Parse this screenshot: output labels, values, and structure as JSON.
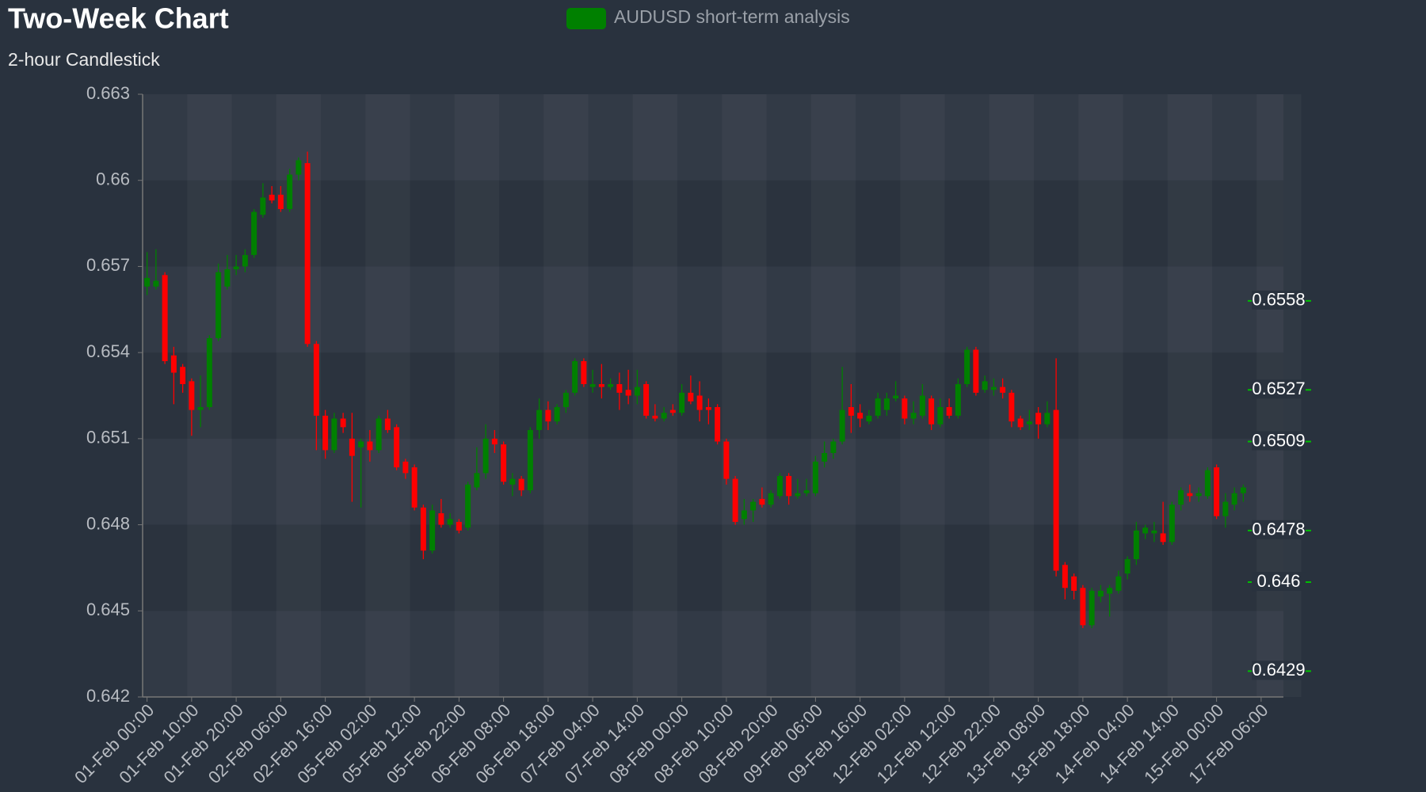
{
  "chart_data": {
    "type": "candlestick",
    "title": "Two-Week Chart",
    "subtitle": "2-hour Candlestick",
    "legend": {
      "name": "AUDUSD short-term analysis",
      "color": "#008000",
      "position": "top"
    },
    "up_color": "#008000",
    "down_color": "#ff0000",
    "ylim": [
      0.642,
      0.663
    ],
    "yticks": [
      0.642,
      0.645,
      0.648,
      0.651,
      0.654,
      0.657,
      0.66,
      0.663
    ],
    "levels": [
      0.6558,
      0.6527,
      0.6509,
      0.6478,
      0.646,
      0.6429
    ],
    "level_color": "#00c000",
    "categories": [
      "01-Feb 00:00",
      null,
      null,
      null,
      null,
      "01-Feb 10:00",
      null,
      null,
      null,
      null,
      "01-Feb 20:00",
      null,
      null,
      null,
      null,
      "02-Feb 06:00",
      null,
      null,
      null,
      null,
      "02-Feb 16:00",
      null,
      null,
      null,
      null,
      "05-Feb 02:00",
      null,
      null,
      null,
      null,
      "05-Feb 12:00",
      null,
      null,
      null,
      null,
      "05-Feb 22:00",
      null,
      null,
      null,
      null,
      "06-Feb 08:00",
      null,
      null,
      null,
      null,
      "06-Feb 18:00",
      null,
      null,
      null,
      null,
      "07-Feb 04:00",
      null,
      null,
      null,
      null,
      "07-Feb 14:00",
      null,
      null,
      null,
      null,
      "08-Feb 00:00",
      null,
      null,
      null,
      null,
      "08-Feb 10:00",
      null,
      null,
      null,
      null,
      "08-Feb 20:00",
      null,
      null,
      null,
      null,
      "09-Feb 06:00",
      null,
      null,
      null,
      null,
      "09-Feb 16:00",
      null,
      null,
      null,
      null,
      "12-Feb 02:00",
      null,
      null,
      null,
      null,
      "12-Feb 12:00",
      null,
      null,
      null,
      null,
      "12-Feb 22:00",
      null,
      null,
      null,
      null,
      "13-Feb 08:00",
      null,
      null,
      null,
      null,
      "13-Feb 18:00",
      null,
      null,
      null,
      null,
      "14-Feb 04:00",
      null,
      null,
      null,
      null,
      "14-Feb 14:00",
      null,
      null,
      null,
      null,
      "15-Feb 00:00",
      null,
      null,
      null,
      null,
      "17-Feb 06:00"
    ],
    "ohlc": [
      [
        0.6563,
        0.6575,
        0.656,
        0.6566
      ],
      [
        0.6563,
        0.6576,
        0.6562,
        0.6565
      ],
      [
        0.6567,
        0.6568,
        0.6536,
        0.6537
      ],
      [
        0.6539,
        0.6542,
        0.6522,
        0.6533
      ],
      [
        0.6535,
        0.6536,
        0.6526,
        0.6529
      ],
      [
        0.653,
        0.6531,
        0.6511,
        0.652
      ],
      [
        0.652,
        0.6532,
        0.6514,
        0.6521
      ],
      [
        0.6521,
        0.6546,
        0.652,
        0.6545
      ],
      [
        0.6545,
        0.6571,
        0.6544,
        0.6568
      ],
      [
        0.6563,
        0.6574,
        0.6562,
        0.6569
      ],
      [
        0.6569,
        0.6574,
        0.6567,
        0.657
      ],
      [
        0.657,
        0.6576,
        0.6568,
        0.6574
      ],
      [
        0.6574,
        0.659,
        0.6573,
        0.6589
      ],
      [
        0.6588,
        0.6599,
        0.6587,
        0.6594
      ],
      [
        0.6595,
        0.6598,
        0.6592,
        0.6593
      ],
      [
        0.6595,
        0.6598,
        0.6589,
        0.659
      ],
      [
        0.659,
        0.6604,
        0.6589,
        0.6602
      ],
      [
        0.6602,
        0.6608,
        0.66,
        0.6607
      ],
      [
        0.6606,
        0.661,
        0.6542,
        0.6543
      ],
      [
        0.6543,
        0.6544,
        0.6506,
        0.6518
      ],
      [
        0.6518,
        0.652,
        0.6503,
        0.6506
      ],
      [
        0.6506,
        0.6519,
        0.6505,
        0.6517
      ],
      [
        0.6517,
        0.6519,
        0.6512,
        0.6514
      ],
      [
        0.651,
        0.6519,
        0.6488,
        0.6504
      ],
      [
        0.6507,
        0.651,
        0.6486,
        0.6509
      ],
      [
        0.6509,
        0.6513,
        0.6502,
        0.6506
      ],
      [
        0.6506,
        0.6518,
        0.6505,
        0.6517
      ],
      [
        0.6517,
        0.652,
        0.6512,
        0.6513
      ],
      [
        0.6514,
        0.6515,
        0.6499,
        0.65
      ],
      [
        0.6502,
        0.6503,
        0.6496,
        0.6498
      ],
      [
        0.65,
        0.6501,
        0.6485,
        0.6486
      ],
      [
        0.6486,
        0.6487,
        0.6468,
        0.6471
      ],
      [
        0.6471,
        0.6487,
        0.647,
        0.6485
      ],
      [
        0.6484,
        0.6489,
        0.6479,
        0.648
      ],
      [
        0.648,
        0.6484,
        0.6479,
        0.6482
      ],
      [
        0.6481,
        0.6482,
        0.6477,
        0.6478
      ],
      [
        0.6479,
        0.6495,
        0.6478,
        0.6494
      ],
      [
        0.6493,
        0.6507,
        0.6492,
        0.6498
      ],
      [
        0.6498,
        0.6515,
        0.6496,
        0.651
      ],
      [
        0.651,
        0.6513,
        0.6505,
        0.6508
      ],
      [
        0.6508,
        0.6509,
        0.6494,
        0.6495
      ],
      [
        0.6494,
        0.6498,
        0.649,
        0.6496
      ],
      [
        0.6496,
        0.6497,
        0.649,
        0.6492
      ],
      [
        0.6492,
        0.6514,
        0.6491,
        0.6513
      ],
      [
        0.6513,
        0.6524,
        0.651,
        0.652
      ],
      [
        0.652,
        0.6523,
        0.6513,
        0.6516
      ],
      [
        0.6516,
        0.6522,
        0.6515,
        0.6521
      ],
      [
        0.6521,
        0.6527,
        0.6519,
        0.6526
      ],
      [
        0.6526,
        0.6538,
        0.6525,
        0.6537
      ],
      [
        0.6537,
        0.6538,
        0.6528,
        0.6529
      ],
      [
        0.6528,
        0.6534,
        0.6526,
        0.6529
      ],
      [
        0.6529,
        0.6536,
        0.6524,
        0.6528
      ],
      [
        0.6528,
        0.6531,
        0.6527,
        0.6529
      ],
      [
        0.6529,
        0.6533,
        0.652,
        0.6526
      ],
      [
        0.6527,
        0.6534,
        0.6522,
        0.6525
      ],
      [
        0.6525,
        0.6534,
        0.6522,
        0.6528
      ],
      [
        0.6529,
        0.653,
        0.6517,
        0.6518
      ],
      [
        0.6518,
        0.6522,
        0.6516,
        0.6517
      ],
      [
        0.6517,
        0.6521,
        0.6516,
        0.6519
      ],
      [
        0.652,
        0.6522,
        0.6518,
        0.6519
      ],
      [
        0.6519,
        0.6529,
        0.6518,
        0.6526
      ],
      [
        0.6526,
        0.6532,
        0.6522,
        0.6523
      ],
      [
        0.6525,
        0.653,
        0.6516,
        0.652
      ],
      [
        0.6521,
        0.6524,
        0.6515,
        0.652
      ],
      [
        0.6521,
        0.6522,
        0.6508,
        0.6509
      ],
      [
        0.6509,
        0.651,
        0.6494,
        0.6496
      ],
      [
        0.6496,
        0.6497,
        0.648,
        0.6481
      ],
      [
        0.6482,
        0.6489,
        0.648,
        0.6485
      ],
      [
        0.6485,
        0.6489,
        0.6481,
        0.6488
      ],
      [
        0.6489,
        0.6493,
        0.6486,
        0.6487
      ],
      [
        0.6487,
        0.6492,
        0.6486,
        0.6491
      ],
      [
        0.649,
        0.6498,
        0.6489,
        0.6497
      ],
      [
        0.6497,
        0.6498,
        0.6487,
        0.649
      ],
      [
        0.649,
        0.6496,
        0.6489,
        0.6491
      ],
      [
        0.6491,
        0.6496,
        0.649,
        0.6492
      ],
      [
        0.6491,
        0.6504,
        0.649,
        0.6502
      ],
      [
        0.6502,
        0.6509,
        0.65,
        0.6505
      ],
      [
        0.6505,
        0.651,
        0.6503,
        0.6509
      ],
      [
        0.6509,
        0.6535,
        0.6508,
        0.652
      ],
      [
        0.6521,
        0.6529,
        0.6512,
        0.6518
      ],
      [
        0.6519,
        0.6522,
        0.6514,
        0.6517
      ],
      [
        0.6516,
        0.652,
        0.6515,
        0.6518
      ],
      [
        0.6518,
        0.6526,
        0.6517,
        0.6524
      ],
      [
        0.652,
        0.6526,
        0.6518,
        0.6524
      ],
      [
        0.6524,
        0.653,
        0.6523,
        0.6525
      ],
      [
        0.6524,
        0.6525,
        0.6515,
        0.6517
      ],
      [
        0.6517,
        0.6523,
        0.6515,
        0.6519
      ],
      [
        0.6518,
        0.6529,
        0.6517,
        0.6525
      ],
      [
        0.6524,
        0.6525,
        0.6513,
        0.6515
      ],
      [
        0.6515,
        0.6524,
        0.6514,
        0.6521
      ],
      [
        0.6521,
        0.6524,
        0.6517,
        0.6518
      ],
      [
        0.6518,
        0.6531,
        0.6517,
        0.6529
      ],
      [
        0.6529,
        0.6542,
        0.6528,
        0.6541
      ],
      [
        0.6541,
        0.6542,
        0.6525,
        0.6526
      ],
      [
        0.6527,
        0.6532,
        0.6526,
        0.653
      ],
      [
        0.6527,
        0.6531,
        0.6525,
        0.6528
      ],
      [
        0.6528,
        0.6531,
        0.6524,
        0.6526
      ],
      [
        0.6526,
        0.6527,
        0.6514,
        0.6516
      ],
      [
        0.6517,
        0.6518,
        0.6513,
        0.6514
      ],
      [
        0.6515,
        0.652,
        0.6513,
        0.6516
      ],
      [
        0.6519,
        0.6521,
        0.651,
        0.6515
      ],
      [
        0.6515,
        0.6523,
        0.6514,
        0.6519
      ],
      [
        0.652,
        0.6538,
        0.6462,
        0.6464
      ],
      [
        0.6466,
        0.6467,
        0.6454,
        0.6458
      ],
      [
        0.6462,
        0.6463,
        0.6454,
        0.6457
      ],
      [
        0.6458,
        0.6459,
        0.6444,
        0.6445
      ],
      [
        0.6445,
        0.6458,
        0.6444,
        0.6457
      ],
      [
        0.6455,
        0.6459,
        0.6453,
        0.6457
      ],
      [
        0.6456,
        0.6459,
        0.6448,
        0.6458
      ],
      [
        0.6457,
        0.6464,
        0.6456,
        0.6462
      ],
      [
        0.6463,
        0.6469,
        0.6461,
        0.6468
      ],
      [
        0.6468,
        0.6481,
        0.6466,
        0.6478
      ],
      [
        0.6477,
        0.648,
        0.6475,
        0.6479
      ],
      [
        0.6477,
        0.6481,
        0.6474,
        0.6478
      ],
      [
        0.6477,
        0.6488,
        0.6473,
        0.6474
      ],
      [
        0.6474,
        0.6488,
        0.6473,
        0.6487
      ],
      [
        0.6487,
        0.6493,
        0.6485,
        0.6492
      ],
      [
        0.6491,
        0.6494,
        0.6488,
        0.649
      ],
      [
        0.649,
        0.6493,
        0.6488,
        0.6491
      ],
      [
        0.649,
        0.65,
        0.6489,
        0.6499
      ],
      [
        0.65,
        0.6501,
        0.6482,
        0.6483
      ],
      [
        0.6483,
        0.6491,
        0.6479,
        0.6488
      ],
      [
        0.6487,
        0.6493,
        0.6485,
        0.6491
      ],
      [
        0.6491,
        0.6494,
        0.6488,
        0.6493
      ],
      null,
      null
    ]
  }
}
